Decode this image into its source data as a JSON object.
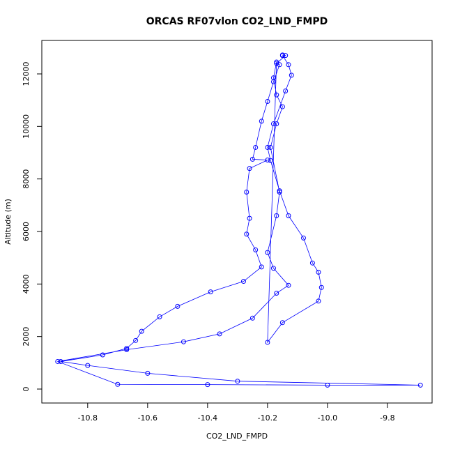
{
  "chart_data": {
    "type": "line",
    "title": "ORCAS RF07vlon CO2_LND_FMPD",
    "x_label": "CO2_LND_FMPD",
    "y_label": "Altitude (m)",
    "color": "#0000ff",
    "markers": true,
    "xlim": [
      -10.953,
      -9.651
    ],
    "ylim": [
      -531,
      13274
    ],
    "xticks": [
      -10.8,
      -10.6,
      -10.4,
      -10.2,
      {
        "value": -10,
        "label": "-10.0"
      },
      -9.8
    ],
    "yticks": [
      0,
      2000,
      4000,
      6000,
      8000,
      10000,
      12000
    ],
    "x": [
      -10.15,
      -10.14,
      -10.17,
      -10.16,
      -10.18,
      -10.2,
      -10.22,
      -10.24,
      -10.25,
      -10.2,
      -10.26,
      -10.27,
      -10.26,
      -10.27,
      -10.24,
      -10.22,
      -10.28,
      -10.39,
      -10.5,
      -10.56,
      -10.62,
      -10.64,
      -10.67,
      -10.75,
      -10.89,
      -10.8,
      -10.6,
      -10.3,
      -9.69,
      -10.0,
      -10.4,
      -10.7,
      -10.9,
      -10.67,
      -10.48,
      -10.36,
      -10.25,
      -10.17,
      -10.13,
      -10.18,
      -10.2,
      -10.17,
      -10.16,
      -10.19,
      -10.17,
      -10.15,
      -10.17,
      -10.18,
      -10.17,
      -10.2,
      -10.15,
      -10.03,
      -10.02,
      -10.03,
      -10.05,
      -10.08,
      -10.13,
      -10.16,
      -10.19,
      -10.2,
      -10.18,
      -10.14,
      -10.12,
      -10.13,
      -10.15
    ],
    "y": [
      12720,
      12700,
      12400,
      12350,
      11700,
      10950,
      10200,
      9200,
      8750,
      8720,
      8400,
      7500,
      6500,
      5900,
      5300,
      4650,
      4100,
      3700,
      3150,
      2750,
      2200,
      1850,
      1550,
      1300,
      1050,
      900,
      600,
      300,
      150,
      150,
      170,
      180,
      1050,
      1500,
      1800,
      2100,
      2700,
      3650,
      3950,
      4600,
      5200,
      6600,
      7500,
      9200,
      10100,
      10750,
      11200,
      11850,
      12450,
      1780,
      2530,
      3350,
      3870,
      4450,
      4800,
      5750,
      6600,
      7550,
      8700,
      9200,
      10100,
      11350,
      11950,
      12350,
      12700
    ]
  }
}
